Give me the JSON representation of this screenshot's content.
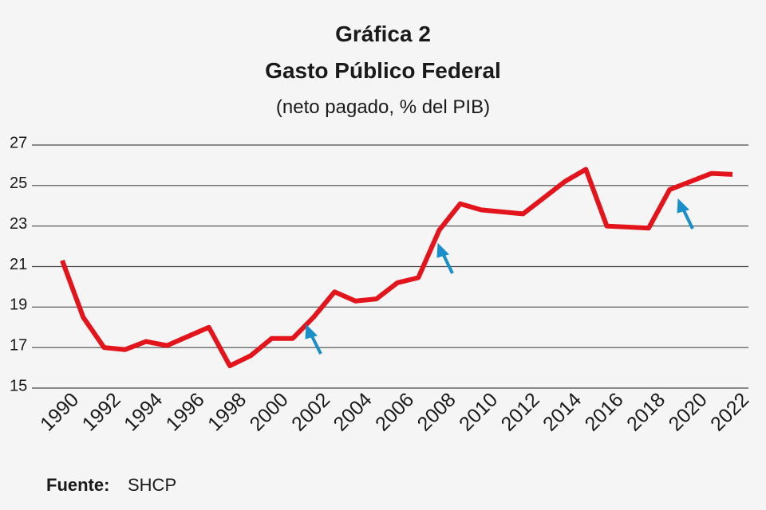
{
  "chart_data": {
    "type": "line",
    "title": "Gráfica 2",
    "subtitle": "Gasto Público Federal",
    "subtitle2": "(neto pagado, % del PIB)",
    "source_label": "Fuente:",
    "source": "SHCP",
    "x": [
      1990,
      1991,
      1992,
      1993,
      1994,
      1995,
      1996,
      1997,
      1998,
      1999,
      2000,
      2001,
      2002,
      2003,
      2004,
      2005,
      2006,
      2007,
      2008,
      2009,
      2010,
      2011,
      2012,
      2013,
      2014,
      2015,
      2016,
      2017,
      2018,
      2019,
      2020,
      2021,
      2022
    ],
    "series": [
      {
        "name": "Gasto Público Federal",
        "color": "#e3141b",
        "values": [
          21.3,
          18.5,
          17.0,
          16.9,
          17.3,
          17.1,
          17.55,
          18.0,
          16.1,
          16.6,
          17.45,
          17.45,
          18.5,
          19.75,
          19.3,
          19.4,
          20.2,
          20.45,
          22.8,
          24.1,
          23.8,
          23.7,
          23.6,
          24.4,
          25.2,
          25.8,
          23.0,
          22.95,
          22.9,
          24.8,
          25.2,
          25.6,
          25.55
        ]
      }
    ],
    "xlim": [
      1990,
      2022
    ],
    "xticks": [
      1990,
      1992,
      1994,
      1996,
      1998,
      2000,
      2002,
      2004,
      2006,
      2008,
      2010,
      2012,
      2014,
      2016,
      2018,
      2020,
      2022
    ],
    "ylim": [
      15,
      27
    ],
    "yticks": [
      15,
      17,
      19,
      21,
      23,
      25,
      27
    ],
    "grid": true
  }
}
